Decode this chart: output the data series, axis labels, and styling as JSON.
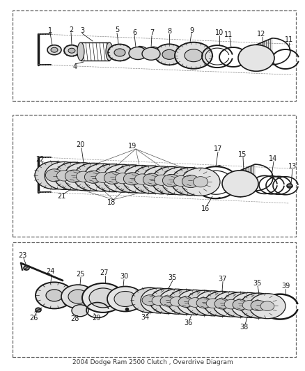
{
  "title": "2004 Dodge Ram 2500 Clutch , Overdrive Diagram",
  "bg_color": "#ffffff",
  "line_color": "#1a1a1a",
  "label_color": "#1a1a1a",
  "fig_w": 4.38,
  "fig_h": 5.33,
  "dpi": 100
}
